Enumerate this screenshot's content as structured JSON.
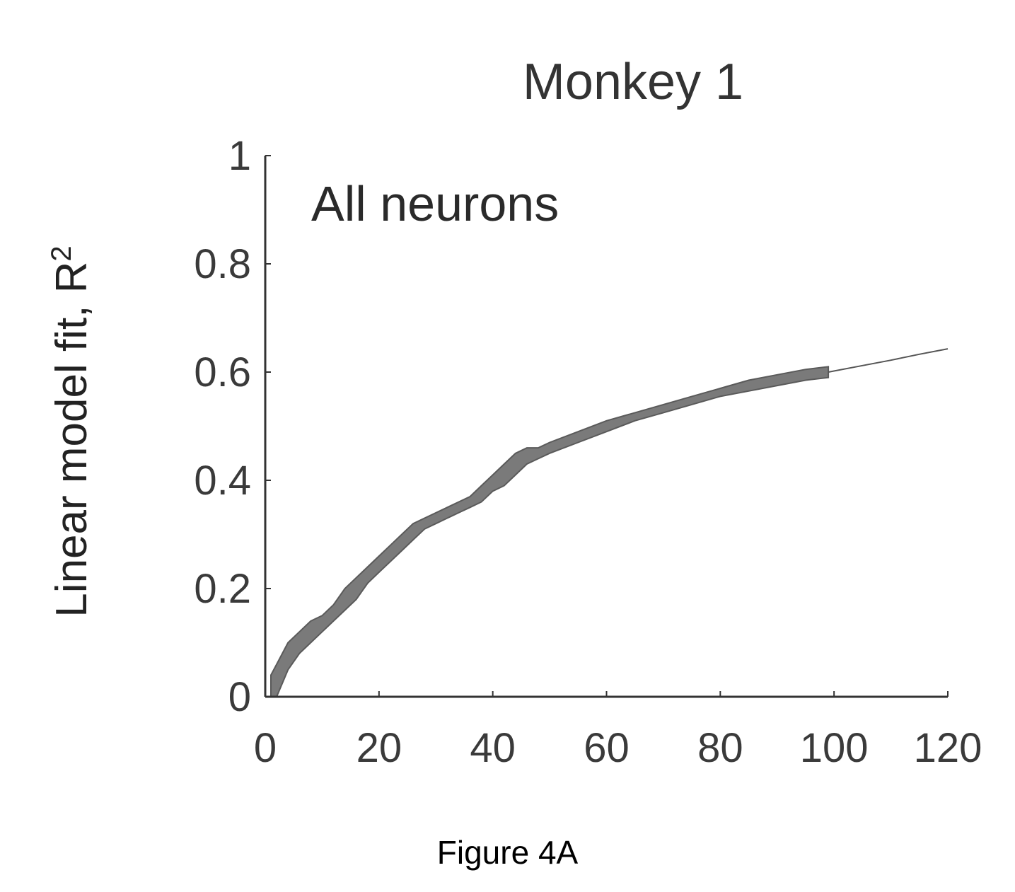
{
  "figure": {
    "caption": "Figure 4A"
  },
  "chart_data": {
    "type": "area",
    "title": "Monkey 1",
    "annotation": "All neurons",
    "xlabel": "",
    "ylabel": "Linear model fit, R",
    "ylabel_superscript": "2",
    "xlim": [
      0,
      120
    ],
    "ylim": [
      0,
      1
    ],
    "xticks": [
      0,
      20,
      40,
      60,
      80,
      100,
      120
    ],
    "xtick_labels": [
      "0",
      "20",
      "40",
      "60",
      "80",
      "100",
      "120"
    ],
    "yticks": [
      0,
      0.2,
      0.4,
      0.6,
      0.8,
      1
    ],
    "ytick_labels": [
      "0",
      "0.2",
      "0.4",
      "0.6",
      "0.8",
      "1"
    ],
    "grid": false,
    "colors": {
      "band": "#7a7a7a",
      "line": "#555555",
      "axis": "#333333"
    },
    "series": [
      {
        "x": [
          1,
          2,
          4,
          6,
          8,
          10,
          12,
          14,
          16,
          18,
          20,
          22,
          24,
          26,
          28,
          30,
          32,
          34,
          36,
          38,
          40,
          42,
          44,
          46,
          48,
          50,
          55,
          60,
          65,
          70,
          75,
          80,
          85,
          90,
          95,
          99
        ],
        "lower": [
          0.0,
          0.0,
          0.05,
          0.08,
          0.1,
          0.12,
          0.14,
          0.16,
          0.18,
          0.21,
          0.23,
          0.25,
          0.27,
          0.29,
          0.31,
          0.32,
          0.33,
          0.34,
          0.35,
          0.36,
          0.38,
          0.39,
          0.41,
          0.43,
          0.44,
          0.45,
          0.47,
          0.49,
          0.51,
          0.525,
          0.54,
          0.555,
          0.565,
          0.575,
          0.585,
          0.59
        ],
        "upper": [
          0.04,
          0.06,
          0.1,
          0.12,
          0.14,
          0.15,
          0.17,
          0.2,
          0.22,
          0.24,
          0.26,
          0.28,
          0.3,
          0.32,
          0.33,
          0.34,
          0.35,
          0.36,
          0.37,
          0.39,
          0.41,
          0.43,
          0.45,
          0.46,
          0.46,
          0.47,
          0.49,
          0.51,
          0.525,
          0.54,
          0.555,
          0.57,
          0.585,
          0.595,
          0.605,
          0.61
        ]
      },
      {
        "x": [
          99,
          105,
          110,
          115,
          120
        ],
        "y": [
          0.6,
          0.612,
          0.622,
          0.633,
          0.643
        ]
      }
    ]
  }
}
